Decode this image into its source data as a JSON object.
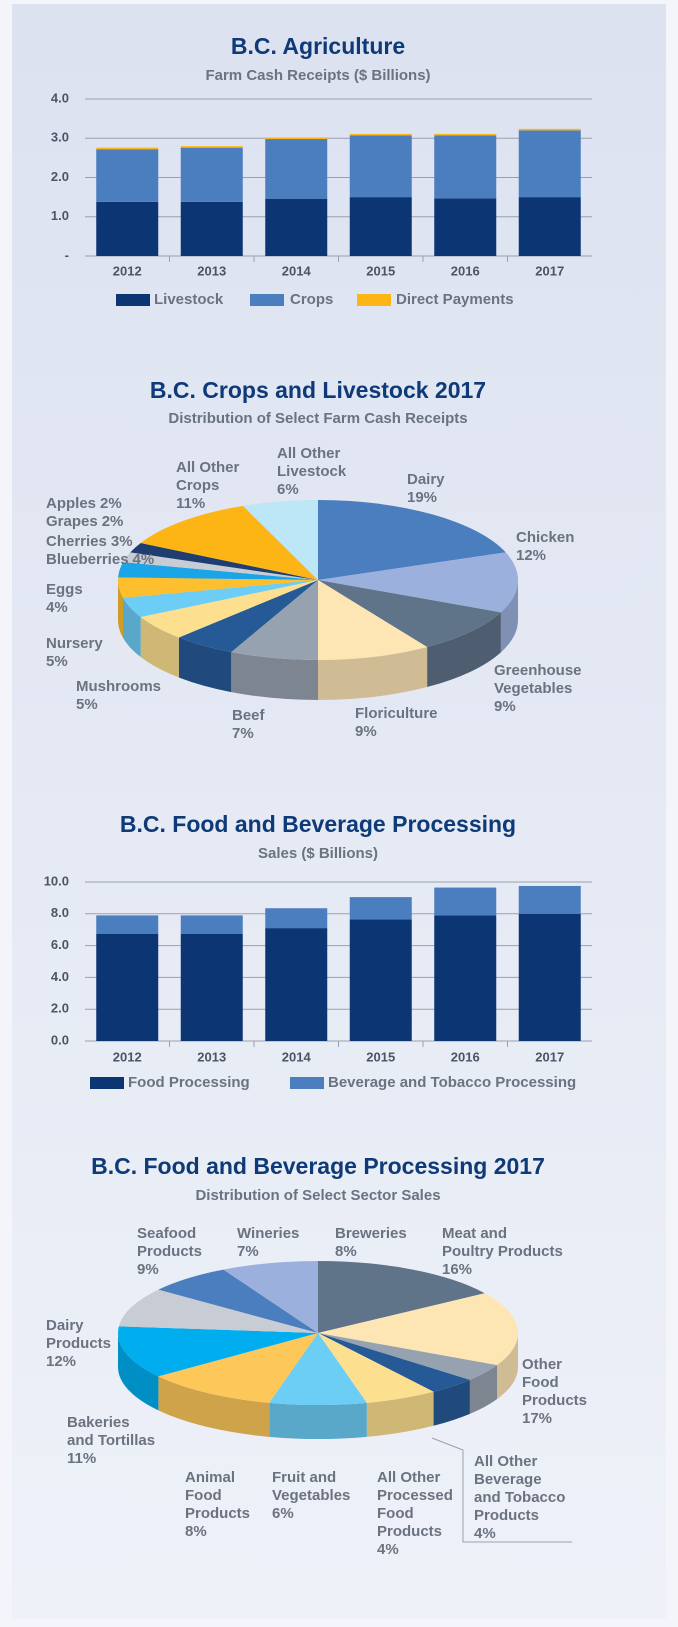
{
  "chart_data": [
    {
      "type": "bar",
      "stacked": true,
      "title": "B.C. Agriculture",
      "subtitle": "Farm Cash Receipts ($ Billions)",
      "categories": [
        "2012",
        "2013",
        "2014",
        "2015",
        "2016",
        "2017"
      ],
      "series": [
        {
          "name": "Livestock",
          "color": "#0c3574",
          "values": [
            1.38,
            1.38,
            1.46,
            1.5,
            1.47,
            1.5
          ]
        },
        {
          "name": "Crops",
          "color": "#4a7ebf",
          "values": [
            1.34,
            1.38,
            1.52,
            1.57,
            1.6,
            1.7
          ]
        },
        {
          "name": "Direct Payments",
          "color": "#fdb515",
          "values": [
            0.04,
            0.04,
            0.04,
            0.04,
            0.04,
            0.04
          ]
        }
      ],
      "ylim": [
        0,
        4
      ],
      "yticks": [
        {
          "value": 0,
          "label": "-"
        },
        {
          "value": 1,
          "label": "1.0"
        },
        {
          "value": 2,
          "label": "2.0"
        },
        {
          "value": 3,
          "label": "3.0"
        },
        {
          "value": 4,
          "label": "4.0"
        }
      ],
      "grid": true,
      "legend": "bottom"
    },
    {
      "type": "pie",
      "title": "B.C. Crops and Livestock 2017",
      "subtitle": "Distribution of Select Farm Cash Receipts",
      "categories": [
        "Dairy",
        "Chicken",
        "Greenhouse Vegetables",
        "Floriculture",
        "Beef",
        "Mushrooms",
        "Nursery",
        "Eggs",
        "Blueberries",
        "Cherries",
        "Grapes",
        "Apples",
        "All Other Crops",
        "All Other Livestock"
      ],
      "values": [
        19,
        12,
        9,
        9,
        7,
        5,
        5,
        4,
        4,
        3,
        2,
        2,
        11,
        6
      ],
      "value_labels": [
        "19%",
        "12%",
        "9%",
        "9%",
        "7%",
        "5%",
        "5%",
        "4%",
        "4%",
        "3%",
        "2%",
        "2%",
        "11%",
        "6%"
      ],
      "colors": [
        "#4a7ebf",
        "#9bb0dc",
        "#5f7389",
        "#fde5b4",
        "#97a2b0",
        "#265a96",
        "#fde08f",
        "#6ccdf5",
        "#fdbf2d",
        "#1aa5e6",
        "#c8ccd4",
        "#1f3d6e",
        "#fdb515",
        "#bde6f7"
      ]
    },
    {
      "type": "bar",
      "stacked": true,
      "title": "B.C. Food and Beverage Processing",
      "subtitle": "Sales ($ Billions)",
      "categories": [
        "2012",
        "2013",
        "2014",
        "2015",
        "2016",
        "2017"
      ],
      "series": [
        {
          "name": "Food Processing",
          "color": "#0c3574",
          "values": [
            6.75,
            6.75,
            7.1,
            7.65,
            7.9,
            8.0
          ]
        },
        {
          "name": "Beverage and Tobacco Processing",
          "color": "#4a7ebf",
          "values": [
            1.15,
            1.15,
            1.25,
            1.4,
            1.75,
            1.75
          ]
        }
      ],
      "ylim": [
        0,
        10
      ],
      "yticks": [
        {
          "value": 0,
          "label": "0.0"
        },
        {
          "value": 2,
          "label": "2.0"
        },
        {
          "value": 4,
          "label": "4.0"
        },
        {
          "value": 6,
          "label": "6.0"
        },
        {
          "value": 8,
          "label": "8.0"
        },
        {
          "value": 10,
          "label": "10.0"
        }
      ],
      "grid": true,
      "legend": "bottom"
    },
    {
      "type": "pie",
      "title": "B.C. Food and Beverage Processing 2017",
      "subtitle": "Distribution of Select Sector Sales",
      "categories": [
        "Meat and Poultry Products",
        "Other Food Products",
        "All Other Beverage and Tobacco Products",
        "All Other Processed Food Products",
        "Fruit and Vegetables",
        "Animal Food Products",
        "Bakeries and Tortillas",
        "Dairy Products",
        "Seafood Products",
        "Wineries",
        "Breweries"
      ],
      "values": [
        16,
        17,
        4,
        4,
        6,
        8,
        11,
        12,
        9,
        7,
        8
      ],
      "value_labels": [
        "16%",
        "17%",
        "4%",
        "4%",
        "6%",
        "8%",
        "11%",
        "12%",
        "9%",
        "7%",
        "8%"
      ],
      "colors": [
        "#5f7389",
        "#fde5b4",
        "#97a2b0",
        "#265a96",
        "#fde08f",
        "#6ccdf5",
        "#fdc75a",
        "#00aeef",
        "#c8ccd4",
        "#4a7ebf",
        "#9bb0dc"
      ]
    }
  ]
}
